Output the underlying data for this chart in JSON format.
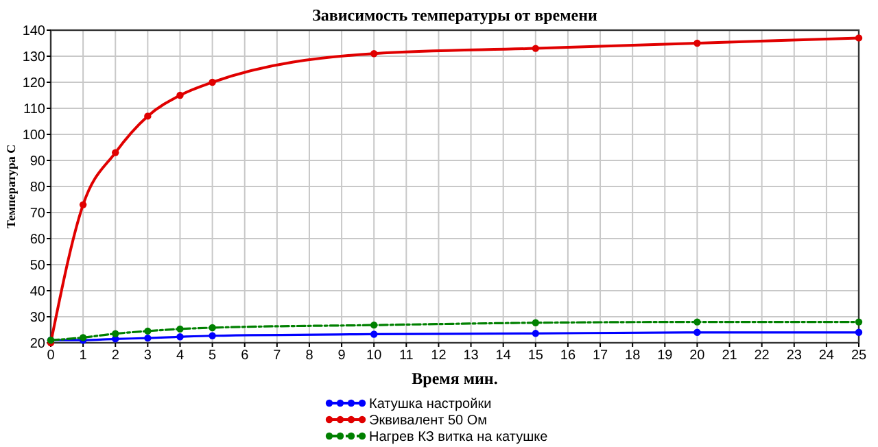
{
  "chart_data": {
    "type": "line",
    "title": "Зависимость температуры от времени",
    "xlabel": "Время мин.",
    "ylabel": "Температура C",
    "x": [
      0,
      1,
      2,
      3,
      4,
      5,
      10,
      15,
      20,
      25
    ],
    "xlim": [
      0,
      25
    ],
    "xticks": [
      0,
      1,
      2,
      3,
      4,
      5,
      6,
      7,
      8,
      9,
      10,
      11,
      12,
      13,
      14,
      15,
      16,
      17,
      18,
      19,
      20,
      21,
      22,
      23,
      24,
      25
    ],
    "ylim": [
      20,
      140
    ],
    "yticks": [
      20,
      30,
      40,
      50,
      60,
      70,
      80,
      90,
      100,
      110,
      120,
      130,
      140
    ],
    "grid": true,
    "legend": "bottom",
    "marker": "circle",
    "series": [
      {
        "name": "Катушка настройки",
        "color": "#0000ff",
        "line_style": "solid",
        "values": [
          21,
          21,
          21.5,
          21.8,
          22.3,
          22.7,
          23.3,
          23.6,
          24,
          24
        ]
      },
      {
        "name": "Эквивалент 50 Ом",
        "color": "#e00000",
        "line_style": "solid",
        "values": [
          20,
          73,
          93,
          107,
          115,
          120,
          131,
          133,
          135,
          137
        ]
      },
      {
        "name": "Нагрев КЗ витка на катушке",
        "color": "#008000",
        "line_style": "dashed",
        "values": [
          21,
          22,
          23.5,
          24.5,
          25.3,
          25.8,
          26.8,
          27.7,
          28,
          28
        ]
      }
    ]
  }
}
